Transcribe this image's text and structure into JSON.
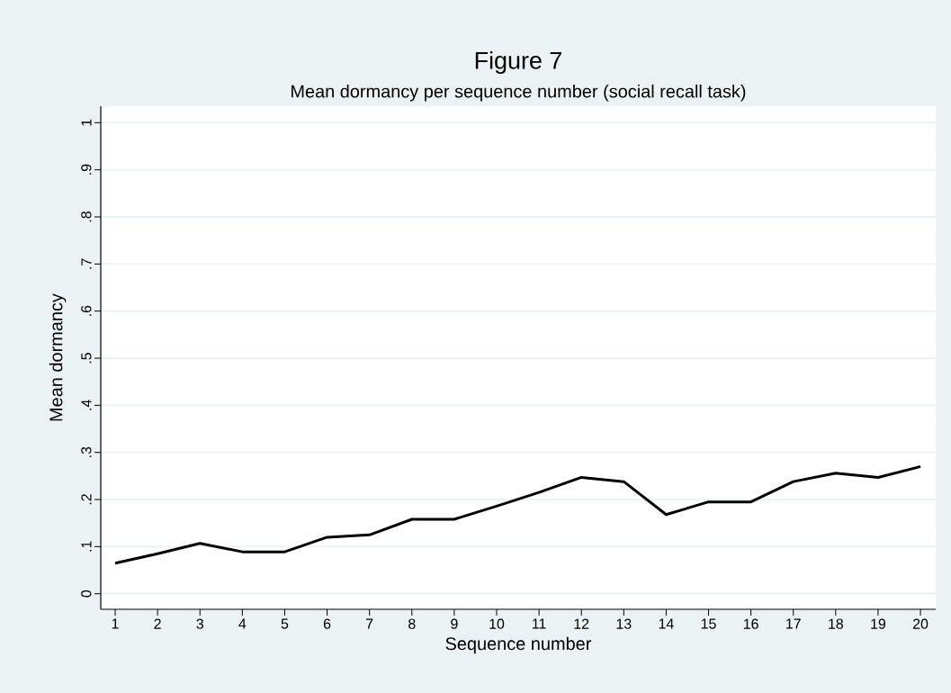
{
  "chart_data": {
    "type": "line",
    "title": "Figure 7",
    "subtitle": "Mean dormancy per sequence number (social recall task)",
    "xlabel": "Sequence number",
    "ylabel": "Mean dormancy",
    "x": [
      1,
      2,
      3,
      4,
      5,
      6,
      7,
      8,
      9,
      10,
      11,
      12,
      13,
      14,
      15,
      16,
      17,
      18,
      19,
      20
    ],
    "series": [
      {
        "color": "#000000",
        "values": [
          0.065,
          0.085,
          0.107,
          0.089,
          0.089,
          0.12,
          0.125,
          0.158,
          0.158,
          0.186,
          0.215,
          0.247,
          0.238,
          0.168,
          0.195,
          0.195,
          0.238,
          0.256,
          0.247,
          0.27
        ]
      }
    ],
    "xlim": [
      0.66,
      20.36
    ],
    "ylim": [
      -0.033,
      1.035
    ],
    "xticks": [
      1,
      2,
      3,
      4,
      5,
      6,
      7,
      8,
      9,
      10,
      11,
      12,
      13,
      14,
      15,
      16,
      17,
      18,
      19,
      20
    ],
    "yticks": [
      0,
      {
        "value": 0.1,
        "label": ".1"
      },
      {
        "value": 0.2,
        "label": ".2"
      },
      {
        "value": 0.3,
        "label": ".3"
      },
      {
        "value": 0.4,
        "label": ".4"
      },
      {
        "value": 0.5,
        "label": ".5"
      },
      {
        "value": 0.6,
        "label": ".6"
      },
      {
        "value": 0.7,
        "label": ".7"
      },
      {
        "value": 0.8,
        "label": ".8"
      },
      {
        "value": 0.9,
        "label": ".9"
      },
      1
    ],
    "grid": "y",
    "marker": "none",
    "line_style": "solid"
  }
}
